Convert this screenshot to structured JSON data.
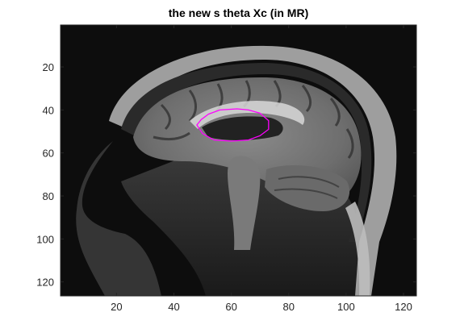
{
  "figure": {
    "title": "the new s theta Xc (in MR)"
  },
  "image": {
    "description_id": "sagittal-mr-brain-slice",
    "colormap": "gray",
    "x_range": [
      0.5,
      124.5
    ],
    "y_range": [
      0.5,
      126.5
    ],
    "y_direction": "reverse"
  },
  "axes": {
    "x_ticks": [
      20,
      40,
      60,
      80,
      100,
      120
    ],
    "x_tick_labels": [
      "20",
      "40",
      "60",
      "80",
      "100",
      "120"
    ],
    "y_ticks": [
      20,
      40,
      60,
      80,
      100,
      120
    ],
    "y_tick_labels": [
      "20",
      "40",
      "60",
      "80",
      "100",
      "120"
    ]
  },
  "contour": {
    "color": "#ff00ff",
    "points": [
      [
        52,
        42
      ],
      [
        56,
        40
      ],
      [
        62,
        39.5
      ],
      [
        66,
        40
      ],
      [
        70,
        41.5
      ],
      [
        73,
        45
      ],
      [
        73,
        49
      ],
      [
        70,
        52
      ],
      [
        66,
        54
      ],
      [
        60,
        54.5
      ],
      [
        54,
        54
      ],
      [
        50,
        51
      ],
      [
        48,
        47
      ],
      [
        49.5,
        44.5
      ]
    ]
  }
}
